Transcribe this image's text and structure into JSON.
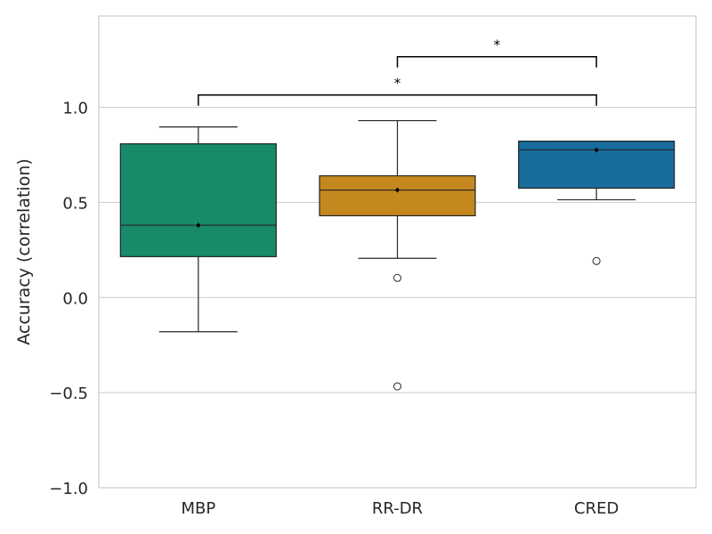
{
  "chart_data": {
    "type": "box",
    "title": "",
    "xlabel": "",
    "ylabel": "Accuracy (correlation)",
    "ylim": [
      -1.0,
      1.48
    ],
    "yticks": [
      -1.0,
      -0.5,
      0.0,
      0.5,
      1.0
    ],
    "ytick_labels": [
      "−1.0",
      "−0.5",
      "0.0",
      "0.5",
      "1.0"
    ],
    "grid": "horizontal",
    "categories": [
      "MBP",
      "RR-DR",
      "CRED"
    ],
    "boxes": [
      {
        "name": "MBP",
        "color": "#178a69",
        "whisker_low": -0.18,
        "q1": 0.215,
        "median": 0.38,
        "q3": 0.808,
        "whisker_high": 0.897,
        "mean": 0.38,
        "outliers": []
      },
      {
        "name": "RR-DR",
        "color": "#c4881f",
        "whisker_low": 0.206,
        "q1": 0.43,
        "median": 0.565,
        "q3": 0.64,
        "whisker_high": 0.93,
        "mean": 0.565,
        "outliers": [
          0.103,
          -0.467
        ]
      },
      {
        "name": "CRED",
        "color": "#176d9c",
        "whisker_low": 0.514,
        "q1": 0.575,
        "median": 0.776,
        "q3": 0.822,
        "whisker_high": 0.822,
        "mean": 0.776,
        "outliers": [
          0.192
        ]
      }
    ],
    "annotations": [
      {
        "from": "MBP",
        "to": "CRED",
        "label": "*",
        "y": 1.065
      },
      {
        "from": "RR-DR",
        "to": "CRED",
        "label": "*",
        "y": 1.266
      }
    ]
  }
}
